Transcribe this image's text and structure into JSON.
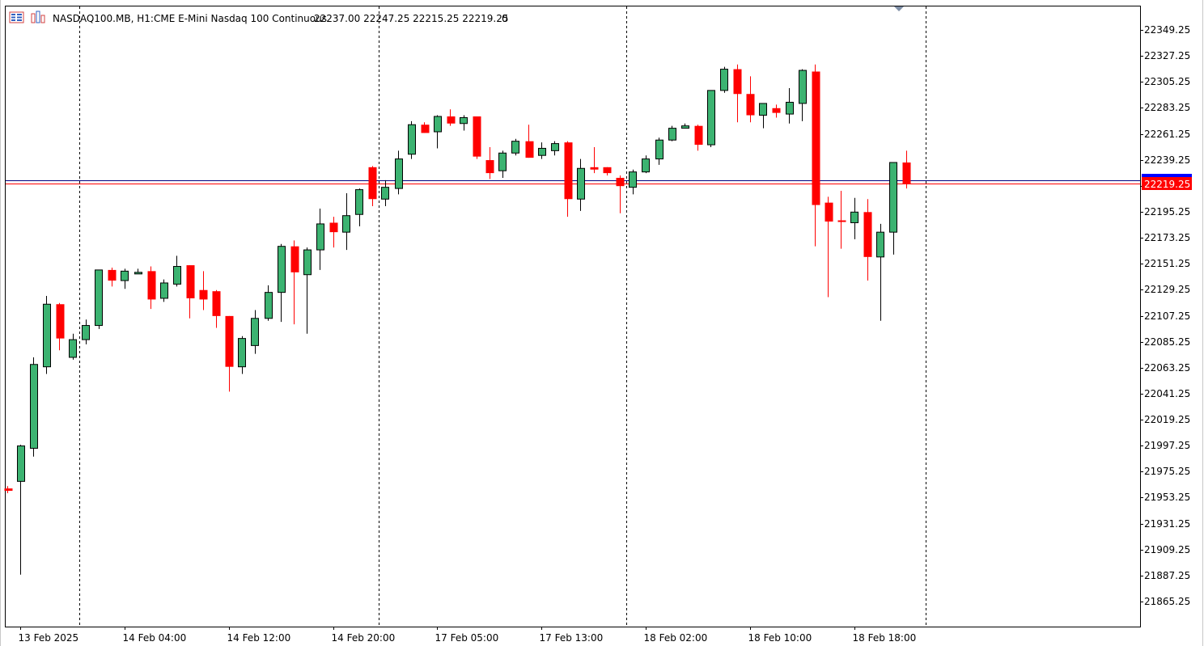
{
  "header": {
    "symbol": "NASDAQ100.MB, H1:",
    "description": "CME E-Mini Nasdaq 100 Continuous",
    "ohlc": "22237.00 22247.25 22215.25 22219.25",
    "volume": "0",
    "menu_icon": "grid-menu-icon",
    "indicator_icon": "bars-chart-icon"
  },
  "colors": {
    "bull": "#3cb371",
    "bear": "#ff0000",
    "bid_line": "#000080",
    "ask_line": "#ff0000",
    "price_tag": "#ff0000",
    "separator": "#000000"
  },
  "chart_data": {
    "type": "candlestick",
    "timeframe": "H1",
    "ylim": [
      21850,
      22370
    ],
    "y_ticks": [
      21865.25,
      21887.25,
      21909.25,
      21931.25,
      21953.25,
      21975.25,
      21997.25,
      22019.25,
      22041.25,
      22063.25,
      22085.25,
      22107.25,
      22129.25,
      22151.25,
      22173.25,
      22195.25,
      22217.25,
      22239.25,
      22261.25,
      22283.25,
      22305.25,
      22327.25,
      22349.25
    ],
    "y_tick_labels": [
      "21865.25",
      "21887.25",
      "21909.25",
      "21931.25",
      "21953.25",
      "21975.25",
      "21997.25",
      "22019.25",
      "22041.25",
      "22063.25",
      "22085.25",
      "22107.25",
      "22129.25",
      "22151.25",
      "22173.25",
      "22195.25",
      "22239.25",
      "22261.25",
      "22283.25",
      "22305.25",
      "22327.25",
      "22349.25"
    ],
    "x_labels": [
      {
        "bar": 1,
        "label": "13 Feb 2025"
      },
      {
        "bar": 9,
        "label": "14 Feb 04:00"
      },
      {
        "bar": 17,
        "label": "14 Feb 12:00"
      },
      {
        "bar": 25,
        "label": "14 Feb 20:00"
      },
      {
        "bar": 33,
        "label": "17 Feb 05:00"
      },
      {
        "bar": 41,
        "label": "17 Feb 13:00"
      },
      {
        "bar": 49,
        "label": "18 Feb 02:00"
      },
      {
        "bar": 57,
        "label": "18 Feb 10:00"
      },
      {
        "bar": 65,
        "label": "18 Feb 18:00"
      }
    ],
    "separators": [
      5.5,
      28.5,
      47.5,
      70.5
    ],
    "current_price": 22219.25,
    "current_price_label": "22219.25",
    "bid_price": 22222.0,
    "candles": [
      {
        "o": 21961,
        "h": 21963,
        "l": 21957,
        "c": 21959
      },
      {
        "o": 21967,
        "h": 21998,
        "l": 21888,
        "c": 21997
      },
      {
        "o": 21995,
        "h": 22072,
        "l": 21988,
        "c": 22066
      },
      {
        "o": 22064,
        "h": 22124,
        "l": 22058,
        "c": 22117
      },
      {
        "o": 22117,
        "h": 22118,
        "l": 22078,
        "c": 22088
      },
      {
        "o": 22072,
        "h": 22092,
        "l": 22070,
        "c": 22087
      },
      {
        "o": 22087,
        "h": 22104,
        "l": 22083,
        "c": 22099
      },
      {
        "o": 22099,
        "h": 22146,
        "l": 22096,
        "c": 22146
      },
      {
        "o": 22146,
        "h": 22148,
        "l": 22132,
        "c": 22137
      },
      {
        "o": 22137,
        "h": 22147,
        "l": 22130,
        "c": 22145
      },
      {
        "o": 22144,
        "h": 22147,
        "l": 22143,
        "c": 22144
      },
      {
        "o": 22145,
        "h": 22149,
        "l": 22113,
        "c": 22121
      },
      {
        "o": 22122,
        "h": 22138,
        "l": 22119,
        "c": 22135
      },
      {
        "o": 22134,
        "h": 22158,
        "l": 22132,
        "c": 22149
      },
      {
        "o": 22150,
        "h": 22150,
        "l": 22105,
        "c": 22122
      },
      {
        "o": 22129,
        "h": 22145,
        "l": 22112,
        "c": 22121
      },
      {
        "o": 22128,
        "h": 22129,
        "l": 22097,
        "c": 22107
      },
      {
        "o": 22107,
        "h": 22107,
        "l": 22043,
        "c": 22064
      },
      {
        "o": 22064,
        "h": 22090,
        "l": 22058,
        "c": 22088
      },
      {
        "o": 22082,
        "h": 22112,
        "l": 22075,
        "c": 22105
      },
      {
        "o": 22105,
        "h": 22133,
        "l": 22103,
        "c": 22127
      },
      {
        "o": 22127,
        "h": 22168,
        "l": 22102,
        "c": 22166
      },
      {
        "o": 22166,
        "h": 22171,
        "l": 22100,
        "c": 22144
      },
      {
        "o": 22142,
        "h": 22165,
        "l": 22092,
        "c": 22163
      },
      {
        "o": 22163,
        "h": 22198,
        "l": 22146,
        "c": 22185
      },
      {
        "o": 22186,
        "h": 22191,
        "l": 22165,
        "c": 22178
      },
      {
        "o": 22178,
        "h": 22211,
        "l": 22163,
        "c": 22192
      },
      {
        "o": 22193,
        "h": 22215,
        "l": 22183,
        "c": 22214
      },
      {
        "o": 22233,
        "h": 22234,
        "l": 22200,
        "c": 22206
      },
      {
        "o": 22206,
        "h": 22222,
        "l": 22200,
        "c": 22216
      },
      {
        "o": 22215,
        "h": 22247,
        "l": 22210,
        "c": 22240
      },
      {
        "o": 22244,
        "h": 22272,
        "l": 22240,
        "c": 22269
      },
      {
        "o": 22269,
        "h": 22271,
        "l": 22262,
        "c": 22262
      },
      {
        "o": 22263,
        "h": 22277,
        "l": 22249,
        "c": 22276
      },
      {
        "o": 22276,
        "h": 22282,
        "l": 22268,
        "c": 22270
      },
      {
        "o": 22270,
        "h": 22277,
        "l": 22264,
        "c": 22275
      },
      {
        "o": 22276,
        "h": 22276,
        "l": 22240,
        "c": 22242
      },
      {
        "o": 22239,
        "h": 22250,
        "l": 22223,
        "c": 22228
      },
      {
        "o": 22230,
        "h": 22247,
        "l": 22224,
        "c": 22245
      },
      {
        "o": 22245,
        "h": 22257,
        "l": 22243,
        "c": 22255
      },
      {
        "o": 22255,
        "h": 22269,
        "l": 22241,
        "c": 22241
      },
      {
        "o": 22243,
        "h": 22254,
        "l": 22240,
        "c": 22249
      },
      {
        "o": 22247,
        "h": 22255,
        "l": 22243,
        "c": 22253
      },
      {
        "o": 22254,
        "h": 22255,
        "l": 22191,
        "c": 22206
      },
      {
        "o": 22206,
        "h": 22240,
        "l": 22196,
        "c": 22232
      },
      {
        "o": 22233,
        "h": 22250,
        "l": 22228,
        "c": 22231
      },
      {
        "o": 22233,
        "h": 22233,
        "l": 22226,
        "c": 22228
      },
      {
        "o": 22224,
        "h": 22226,
        "l": 22194,
        "c": 22217
      },
      {
        "o": 22216,
        "h": 22231,
        "l": 22210,
        "c": 22229
      },
      {
        "o": 22229,
        "h": 22243,
        "l": 22228,
        "c": 22240
      },
      {
        "o": 22240,
        "h": 22258,
        "l": 22235,
        "c": 22256
      },
      {
        "o": 22256,
        "h": 22268,
        "l": 22255,
        "c": 22266
      },
      {
        "o": 22266,
        "h": 22270,
        "l": 22267,
        "c": 22268
      },
      {
        "o": 22268,
        "h": 22269,
        "l": 22247,
        "c": 22252
      },
      {
        "o": 22252,
        "h": 22298,
        "l": 22250,
        "c": 22298
      },
      {
        "o": 22298,
        "h": 22318,
        "l": 22296,
        "c": 22316
      },
      {
        "o": 22316,
        "h": 22320,
        "l": 22271,
        "c": 22295
      },
      {
        "o": 22295,
        "h": 22310,
        "l": 22271,
        "c": 22277
      },
      {
        "o": 22277,
        "h": 22285,
        "l": 22266,
        "c": 22287
      },
      {
        "o": 22283,
        "h": 22286,
        "l": 22275,
        "c": 22279
      },
      {
        "o": 22278,
        "h": 22300,
        "l": 22270,
        "c": 22288
      },
      {
        "o": 22287,
        "h": 22316,
        "l": 22272,
        "c": 22315
      },
      {
        "o": 22314,
        "h": 22320,
        "l": 22166,
        "c": 22201
      },
      {
        "o": 22203,
        "h": 22208,
        "l": 22123,
        "c": 22187
      },
      {
        "o": 22188,
        "h": 22213,
        "l": 22164,
        "c": 22187
      },
      {
        "o": 22186,
        "h": 22207,
        "l": 22172,
        "c": 22195
      },
      {
        "o": 22195,
        "h": 22206,
        "l": 22137,
        "c": 22157
      },
      {
        "o": 22157,
        "h": 22185,
        "l": 22103,
        "c": 22178
      },
      {
        "o": 22178,
        "h": 22237,
        "l": 22159,
        "c": 22237
      },
      {
        "o": 22237,
        "h": 22247,
        "l": 22215,
        "c": 22219
      }
    ]
  }
}
